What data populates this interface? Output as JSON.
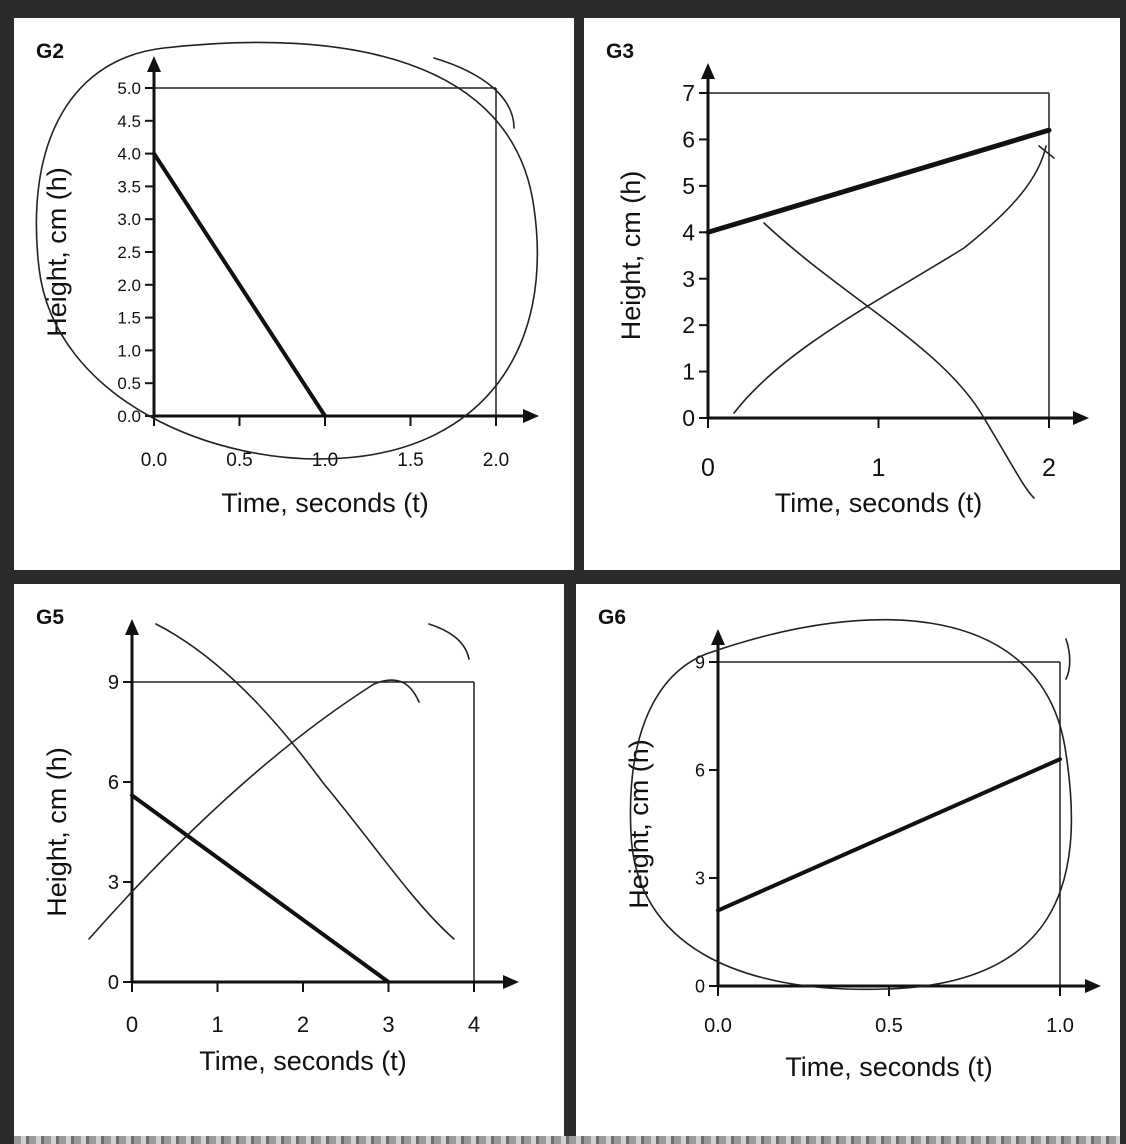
{
  "chart_data": [
    {
      "type": "line",
      "title": "G2",
      "xlabel": "Time, seconds (t)",
      "ylabel": "Height, cm (h)",
      "xlim": [
        0,
        2.0
      ],
      "ylim": [
        0,
        5.0
      ],
      "x_ticks": [
        "0.0",
        "0.5",
        "1.0",
        "1.5",
        "2.0"
      ],
      "y_ticks": [
        "0.0",
        "0.5",
        "1.0",
        "1.5",
        "2.0",
        "2.5",
        "3.0",
        "3.5",
        "4.0",
        "4.5",
        "5.0"
      ],
      "series": [
        {
          "x": [
            0,
            1.0
          ],
          "y": [
            4.0,
            0.0
          ]
        }
      ],
      "grid": false
    },
    {
      "type": "line",
      "title": "G3",
      "xlabel": "Time, seconds (t)",
      "ylabel": "Height, cm (h)",
      "xlim": [
        0,
        2
      ],
      "ylim": [
        0,
        7
      ],
      "x_ticks": [
        "0",
        "1",
        "2"
      ],
      "y_ticks": [
        "0",
        "1",
        "2",
        "3",
        "4",
        "5",
        "6",
        "7"
      ],
      "series": [
        {
          "x": [
            0,
            2
          ],
          "y": [
            4.0,
            6.2
          ]
        }
      ],
      "grid": false
    },
    {
      "type": "line",
      "title": "G5",
      "xlabel": "Time, seconds (t)",
      "ylabel": "Height, cm (h)",
      "xlim": [
        0,
        4
      ],
      "ylim": [
        0,
        9
      ],
      "x_ticks": [
        "0",
        "1",
        "2",
        "3",
        "4"
      ],
      "y_ticks": [
        "0",
        "3",
        "6",
        "9"
      ],
      "series": [
        {
          "x": [
            0,
            3
          ],
          "y": [
            5.6,
            0.0
          ]
        }
      ],
      "grid": false
    },
    {
      "type": "line",
      "title": "G6",
      "xlabel": "Time, seconds (t)",
      "ylabel": "Height, cm (h)",
      "xlim": [
        0,
        1.0
      ],
      "ylim": [
        0,
        9
      ],
      "x_ticks": [
        "0.0",
        "0.5",
        "1.0"
      ],
      "y_ticks": [
        "0",
        "3",
        "6",
        "9"
      ],
      "series": [
        {
          "x": [
            0,
            1.0
          ],
          "y": [
            2.1,
            6.3
          ]
        }
      ],
      "grid": false
    }
  ]
}
